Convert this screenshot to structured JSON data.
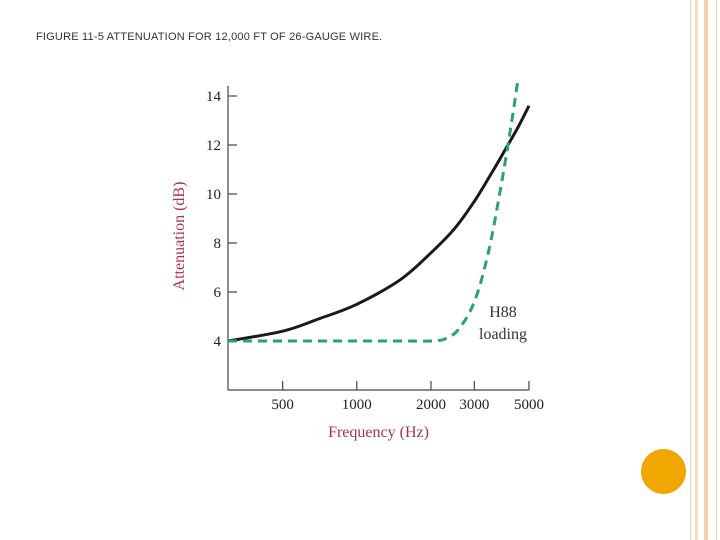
{
  "slide": {
    "title": "FIGURE 11-5 ATTENUATION FOR 12,000 FT OF 26-GAUGE WIRE."
  },
  "decor": {
    "accent_color": "#f0a800",
    "stripe_color": "#f5d4b6"
  },
  "chart_data": {
    "type": "line",
    "xlabel": "Frequency (Hz)",
    "ylabel": "Attenuation (dB)",
    "x_scale": "log",
    "xlim": [
      300,
      5000
    ],
    "ylim": [
      2,
      14
    ],
    "x_ticks": [
      "500",
      "1000",
      "2000",
      "3000",
      "5000"
    ],
    "y_ticks": [
      "4",
      "6",
      "8",
      "10",
      "12",
      "14"
    ],
    "grid": false,
    "series": [
      {
        "style": "solid",
        "color": "#1a1a1a",
        "x": [
          300,
          500,
          700,
          1000,
          1500,
          2000,
          2500,
          3000,
          3500,
          4000,
          4500,
          5000
        ],
        "y": [
          4.0,
          4.4,
          4.9,
          5.5,
          6.5,
          7.6,
          8.6,
          9.7,
          10.8,
          11.8,
          12.7,
          13.6
        ]
      },
      {
        "style": "dashed",
        "color": "#2aa36b",
        "x": [
          300,
          500,
          1000,
          1500,
          2000,
          2300,
          2600,
          3000,
          3400,
          3800,
          4200,
          4500
        ],
        "y": [
          4.0,
          4.0,
          4.0,
          4.0,
          4.0,
          4.1,
          4.5,
          5.6,
          7.5,
          10.0,
          12.6,
          14.6
        ]
      }
    ],
    "annotation": [
      "H88",
      "loading"
    ]
  }
}
